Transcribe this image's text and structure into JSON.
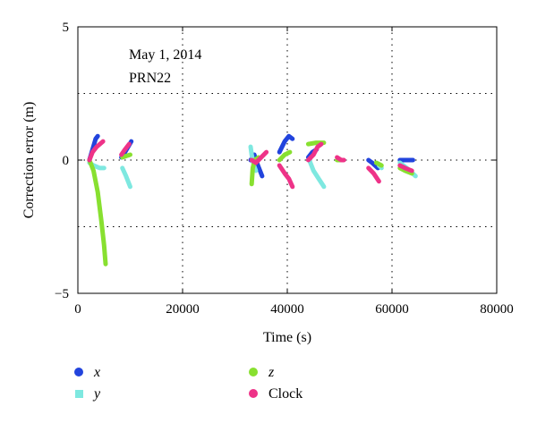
{
  "chart_data": {
    "type": "line",
    "xlabel": "Time (s)",
    "ylabel": "Correction error (m)",
    "xlim": [
      0,
      80000
    ],
    "ylim": [
      -5,
      5
    ],
    "xticks": [
      0,
      20000,
      40000,
      60000,
      80000
    ],
    "yticks": [
      -5,
      0,
      5
    ],
    "xtick_labels": [
      "0",
      "20000",
      "40000",
      "60000",
      "80000"
    ],
    "ytick_labels": [
      "−5",
      "0",
      "5"
    ],
    "grid": true,
    "annotations": [
      "May 1, 2014",
      "PRN22"
    ],
    "legend_position": "bottom",
    "series": [
      {
        "name": "x",
        "italic": true,
        "color": "#2244dd",
        "marker": "circle",
        "segments": [
          [
            [
              2200,
              0
            ],
            [
              2800,
              0.4
            ],
            [
              3400,
              0.8
            ],
            [
              3800,
              0.9
            ]
          ],
          [
            [
              8300,
              0.1
            ],
            [
              9000,
              0.3
            ],
            [
              9600,
              0.5
            ],
            [
              10200,
              0.7
            ]
          ],
          [
            [
              33000,
              0.0
            ],
            [
              33700,
              0.2
            ],
            [
              34400,
              -0.2
            ],
            [
              35200,
              -0.6
            ]
          ],
          [
            [
              38500,
              0.3
            ],
            [
              39500,
              0.7
            ],
            [
              40300,
              0.9
            ],
            [
              41000,
              0.8
            ]
          ],
          [
            [
              44000,
              0.1
            ],
            [
              44800,
              0.3
            ],
            [
              45600,
              0.4
            ]
          ],
          [
            [
              55500,
              0.0
            ],
            [
              56200,
              -0.1
            ],
            [
              57300,
              -0.3
            ]
          ],
          [
            [
              61500,
              0.0
            ],
            [
              62500,
              0.0
            ],
            [
              64000,
              0.0
            ]
          ]
        ]
      },
      {
        "name": "y",
        "italic": true,
        "color": "#7ee8e0",
        "marker": "square",
        "segments": [
          [
            [
              2200,
              -0.1
            ],
            [
              3000,
              -0.2
            ],
            [
              4200,
              -0.3
            ],
            [
              5000,
              -0.3
            ]
          ],
          [
            [
              8500,
              -0.3
            ],
            [
              9200,
              -0.6
            ],
            [
              9800,
              -0.9
            ],
            [
              10000,
              -1.0
            ]
          ],
          [
            [
              33000,
              0.5
            ],
            [
              33200,
              0.2
            ],
            [
              33600,
              -0.2
            ],
            [
              34000,
              -0.4
            ]
          ],
          [
            [
              44200,
              0.0
            ],
            [
              45000,
              -0.4
            ],
            [
              46000,
              -0.7
            ],
            [
              47000,
              -1.0
            ]
          ],
          [
            [
              57500,
              -0.2
            ],
            [
              58000,
              -0.3
            ]
          ],
          [
            [
              61500,
              -0.1
            ],
            [
              62800,
              -0.3
            ],
            [
              64500,
              -0.6
            ]
          ]
        ]
      },
      {
        "name": "z",
        "italic": true,
        "color": "#88e030",
        "marker": "circle",
        "segments": [
          [
            [
              2200,
              0.0
            ],
            [
              3000,
              -0.4
            ],
            [
              3800,
              -1.2
            ],
            [
              4500,
              -2.3
            ],
            [
              5000,
              -3.2
            ],
            [
              5300,
              -3.9
            ]
          ],
          [
            [
              8500,
              0.1
            ],
            [
              9200,
              0.15
            ],
            [
              10000,
              0.2
            ]
          ],
          [
            [
              33200,
              -0.9
            ],
            [
              33400,
              -0.3
            ],
            [
              33800,
              0.0
            ],
            [
              34500,
              0.1
            ]
          ],
          [
            [
              38500,
              0.0
            ],
            [
              39500,
              0.2
            ],
            [
              40500,
              0.3
            ]
          ],
          [
            [
              44000,
              0.6
            ],
            [
              45500,
              0.65
            ],
            [
              47000,
              0.65
            ]
          ],
          [
            [
              49500,
              0.0
            ],
            [
              50500,
              0.0
            ]
          ],
          [
            [
              57000,
              -0.1
            ],
            [
              58000,
              -0.2
            ]
          ],
          [
            [
              61500,
              -0.3
            ],
            [
              62500,
              -0.4
            ],
            [
              63800,
              -0.5
            ]
          ]
        ]
      },
      {
        "name": "Clock",
        "italic": false,
        "color": "#ee3388",
        "marker": "circle",
        "segments": [
          [
            [
              2200,
              0.0
            ],
            [
              2800,
              0.3
            ],
            [
              3600,
              0.5
            ],
            [
              4800,
              0.7
            ]
          ],
          [
            [
              8300,
              0.2
            ],
            [
              9000,
              0.4
            ],
            [
              9800,
              0.6
            ]
          ],
          [
            [
              33200,
              0.0
            ],
            [
              34000,
              -0.1
            ],
            [
              35000,
              0.1
            ],
            [
              36000,
              0.3
            ]
          ],
          [
            [
              38500,
              -0.2
            ],
            [
              39500,
              -0.5
            ],
            [
              40300,
              -0.7
            ],
            [
              41000,
              -1.0
            ]
          ],
          [
            [
              44000,
              0.0
            ],
            [
              45000,
              0.2
            ],
            [
              45800,
              0.5
            ],
            [
              46500,
              0.6
            ]
          ],
          [
            [
              49500,
              0.1
            ],
            [
              50300,
              0.0
            ],
            [
              50800,
              0.0
            ]
          ],
          [
            [
              55500,
              -0.3
            ],
            [
              56500,
              -0.5
            ],
            [
              57500,
              -0.8
            ]
          ],
          [
            [
              61500,
              -0.2
            ],
            [
              62500,
              -0.3
            ],
            [
              63800,
              -0.4
            ]
          ]
        ]
      }
    ]
  }
}
